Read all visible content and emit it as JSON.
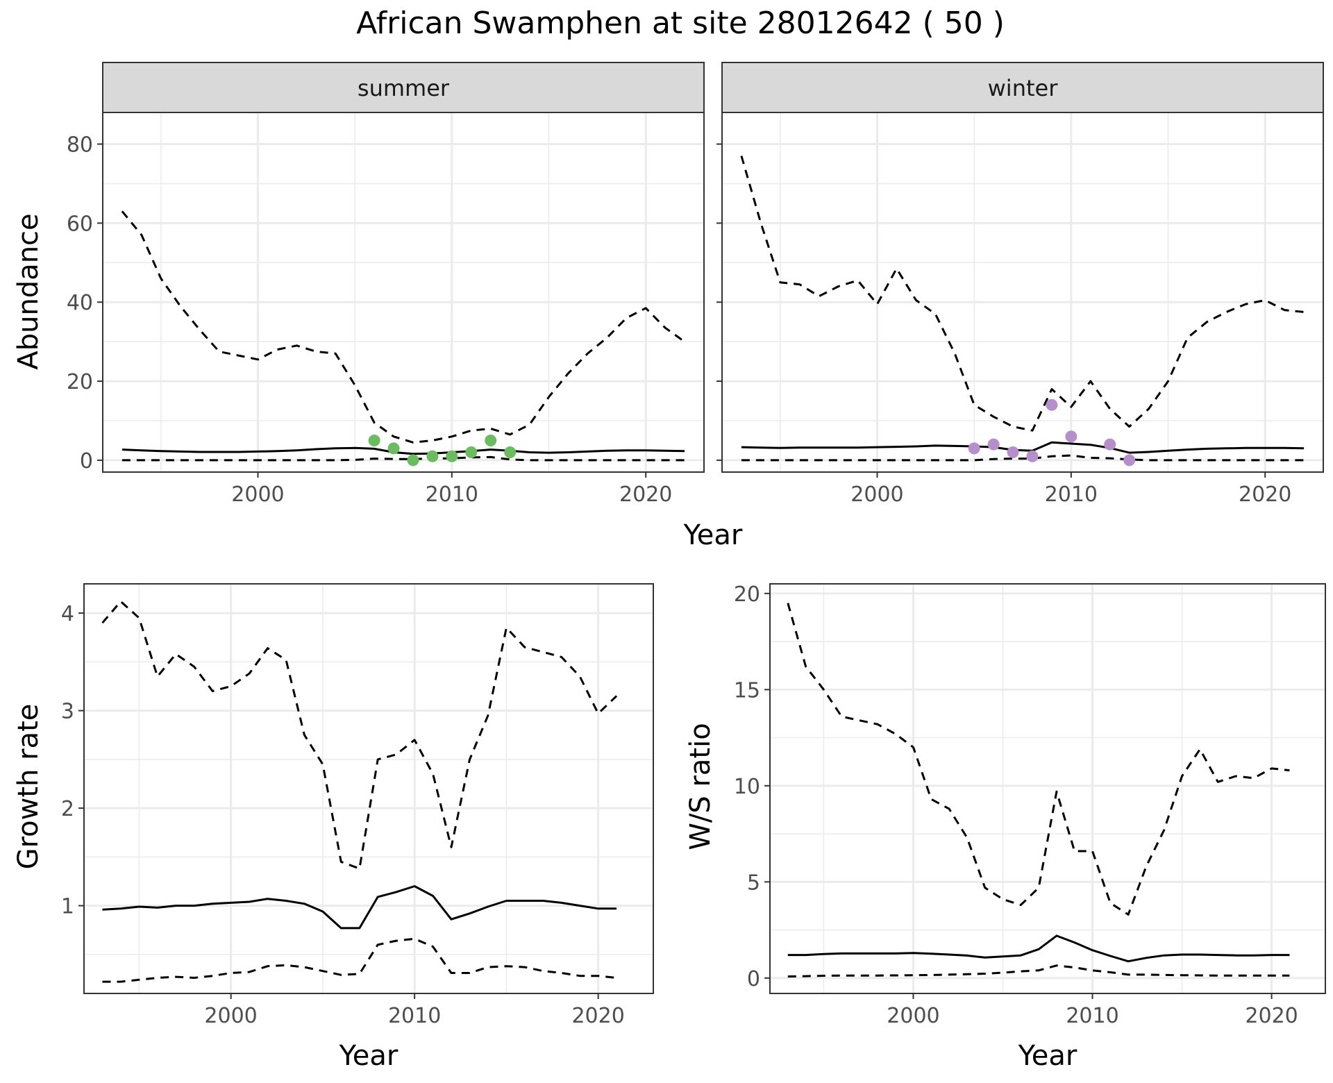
{
  "title": "African Swamphen at site 28012642 ( 50 )",
  "colors": {
    "summer_points": "#6ABD5E",
    "winter_points": "#B58FCB",
    "strip_fill": "#D9D9D9",
    "grid": "#EBEBEB",
    "line": "#000000"
  },
  "chart_data": [
    {
      "type": "line",
      "ylabel": "Abundance",
      "xlabel": "Year",
      "xlim": [
        1992,
        2023
      ],
      "ylim": [
        -3,
        88
      ],
      "xticks": [
        2000,
        2010,
        2020
      ],
      "yticks": [
        0,
        20,
        40,
        60,
        80
      ],
      "grid": true,
      "facets": [
        {
          "label": "summer",
          "x": [
            1993,
            1994,
            1995,
            1996,
            1997,
            1998,
            1999,
            2000,
            2001,
            2002,
            2003,
            2004,
            2005,
            2006,
            2007,
            2008,
            2009,
            2010,
            2011,
            2012,
            2013,
            2014,
            2015,
            2016,
            2017,
            2018,
            2019,
            2020,
            2021,
            2022
          ],
          "series": [
            {
              "style": "solid",
              "values": [
                2.7,
                2.5,
                2.3,
                2.2,
                2.1,
                2.1,
                2.1,
                2.2,
                2.3,
                2.5,
                2.8,
                3.0,
                3.1,
                2.9,
                2.0,
                1.6,
                1.7,
                2.0,
                2.3,
                2.7,
                2.4,
                2.0,
                1.9,
                2.0,
                2.2,
                2.4,
                2.5,
                2.5,
                2.4,
                2.3
              ]
            },
            {
              "style": "dashed",
              "values": [
                63,
                57,
                46,
                39,
                33,
                27.5,
                26.5,
                25.5,
                28,
                29,
                27.5,
                27,
                19,
                9.5,
                6,
                4.5,
                5,
                6,
                7.5,
                8,
                6.5,
                9,
                16,
                22,
                27,
                31,
                36,
                38.5,
                33.5,
                30
              ]
            },
            {
              "style": "dashed",
              "values": [
                0,
                0,
                0,
                0,
                0,
                0,
                0,
                0,
                0,
                0,
                0,
                0,
                0.1,
                0.4,
                0.3,
                0.3,
                0.4,
                0.5,
                0.7,
                0.8,
                0.2,
                0,
                0,
                0,
                0,
                0,
                0,
                0,
                0,
                0
              ]
            }
          ],
          "points": {
            "x": [
              2006,
              2007,
              2008,
              2009,
              2010,
              2011,
              2012,
              2013
            ],
            "y": [
              5,
              3,
              0,
              1,
              1,
              2,
              5,
              2
            ]
          }
        },
        {
          "label": "winter",
          "x": [
            1993,
            1994,
            1995,
            1996,
            1997,
            1998,
            1999,
            2000,
            2001,
            2002,
            2003,
            2004,
            2005,
            2006,
            2007,
            2008,
            2009,
            2010,
            2011,
            2012,
            2013,
            2014,
            2015,
            2016,
            2017,
            2018,
            2019,
            2020,
            2021,
            2022
          ],
          "series": [
            {
              "style": "solid",
              "values": [
                3.3,
                3.2,
                3.1,
                3.2,
                3.2,
                3.2,
                3.2,
                3.3,
                3.4,
                3.5,
                3.7,
                3.6,
                3.5,
                3.3,
                2.6,
                2.4,
                4.5,
                4.2,
                3.9,
                3.1,
                1.9,
                2.1,
                2.4,
                2.7,
                2.9,
                3.0,
                3.1,
                3.1,
                3.1,
                3.0
              ]
            },
            {
              "style": "dashed",
              "values": [
                77,
                60,
                45,
                44.5,
                41.5,
                44,
                45.5,
                39.5,
                48.5,
                40.5,
                37,
                27,
                14,
                11,
                8.5,
                7.5,
                18,
                13.5,
                20,
                13,
                8.5,
                13,
                20,
                31,
                35,
                37.5,
                39.5,
                40.5,
                38,
                37.5
              ]
            },
            {
              "style": "dashed",
              "values": [
                0,
                0,
                0,
                0,
                0,
                0,
                0,
                0,
                0,
                0,
                0,
                0,
                0,
                0.3,
                0.4,
                0.4,
                1.0,
                1.2,
                0.6,
                0.5,
                0.2,
                0,
                0,
                0,
                0,
                0,
                0,
                0,
                0,
                0
              ]
            }
          ],
          "points": {
            "x": [
              2005,
              2006,
              2007,
              2008,
              2009,
              2010,
              2012,
              2013
            ],
            "y": [
              3,
              4,
              2,
              1,
              14,
              6,
              4,
              0
            ]
          }
        }
      ]
    },
    {
      "type": "line",
      "ylabel": "Growth rate",
      "xlabel": "Year",
      "xlim": [
        1992,
        2023
      ],
      "ylim": [
        0.1,
        4.3
      ],
      "xticks": [
        2000,
        2010,
        2020
      ],
      "yticks": [
        1,
        2,
        3,
        4
      ],
      "grid": true,
      "x": [
        1993,
        1994,
        1995,
        1996,
        1997,
        1998,
        1999,
        2000,
        2001,
        2002,
        2003,
        2004,
        2005,
        2006,
        2007,
        2008,
        2009,
        2010,
        2011,
        2012,
        2013,
        2014,
        2015,
        2016,
        2017,
        2018,
        2019,
        2020,
        2021
      ],
      "series": [
        {
          "style": "solid",
          "values": [
            0.96,
            0.97,
            0.99,
            0.98,
            1.0,
            1.0,
            1.02,
            1.03,
            1.04,
            1.07,
            1.05,
            1.02,
            0.94,
            0.77,
            0.77,
            1.09,
            1.14,
            1.2,
            1.1,
            0.86,
            0.92,
            0.99,
            1.05,
            1.05,
            1.05,
            1.03,
            1.0,
            0.97,
            0.97
          ]
        },
        {
          "style": "dashed",
          "values": [
            3.9,
            4.12,
            3.95,
            3.35,
            3.58,
            3.45,
            3.2,
            3.25,
            3.38,
            3.64,
            3.52,
            2.75,
            2.45,
            1.45,
            1.38,
            2.5,
            2.55,
            2.7,
            2.35,
            1.6,
            2.5,
            2.95,
            3.85,
            3.65,
            3.6,
            3.55,
            3.35,
            2.97,
            3.15
          ]
        },
        {
          "style": "dashed",
          "values": [
            0.22,
            0.22,
            0.24,
            0.26,
            0.27,
            0.26,
            0.28,
            0.31,
            0.32,
            0.38,
            0.39,
            0.37,
            0.33,
            0.29,
            0.3,
            0.6,
            0.64,
            0.66,
            0.58,
            0.31,
            0.31,
            0.37,
            0.38,
            0.37,
            0.33,
            0.31,
            0.28,
            0.28,
            0.26
          ]
        }
      ]
    },
    {
      "type": "line",
      "ylabel": "W/S ratio",
      "xlabel": "Year",
      "xlim": [
        1992,
        2023
      ],
      "ylim": [
        -0.8,
        20.5
      ],
      "xticks": [
        2000,
        2010,
        2020
      ],
      "yticks": [
        0,
        5,
        10,
        15,
        20
      ],
      "grid": true,
      "x": [
        1993,
        1994,
        1995,
        1996,
        1997,
        1998,
        1999,
        2000,
        2001,
        2002,
        2003,
        2004,
        2005,
        2006,
        2007,
        2008,
        2009,
        2010,
        2011,
        2012,
        2013,
        2014,
        2015,
        2016,
        2017,
        2018,
        2019,
        2020,
        2021
      ],
      "series": [
        {
          "style": "solid",
          "values": [
            1.2,
            1.2,
            1.25,
            1.28,
            1.28,
            1.28,
            1.28,
            1.3,
            1.27,
            1.22,
            1.17,
            1.07,
            1.12,
            1.18,
            1.5,
            2.2,
            1.85,
            1.45,
            1.15,
            0.87,
            1.05,
            1.18,
            1.22,
            1.22,
            1.2,
            1.18,
            1.18,
            1.2,
            1.2
          ]
        },
        {
          "style": "dashed",
          "values": [
            19.5,
            16.2,
            15,
            13.6,
            13.4,
            13.2,
            12.7,
            12,
            9.3,
            8.8,
            7.3,
            4.7,
            4.1,
            3.8,
            4.7,
            9.7,
            6.6,
            6.6,
            3.9,
            3.3,
            5.8,
            7.7,
            10.5,
            11.9,
            10.2,
            10.5,
            10.4,
            10.9,
            10.8
          ]
        },
        {
          "style": "dashed",
          "values": [
            0.08,
            0.1,
            0.12,
            0.13,
            0.13,
            0.13,
            0.14,
            0.15,
            0.16,
            0.18,
            0.2,
            0.23,
            0.28,
            0.35,
            0.4,
            0.65,
            0.55,
            0.4,
            0.3,
            0.18,
            0.18,
            0.16,
            0.15,
            0.14,
            0.13,
            0.13,
            0.13,
            0.13,
            0.13
          ]
        }
      ]
    }
  ]
}
